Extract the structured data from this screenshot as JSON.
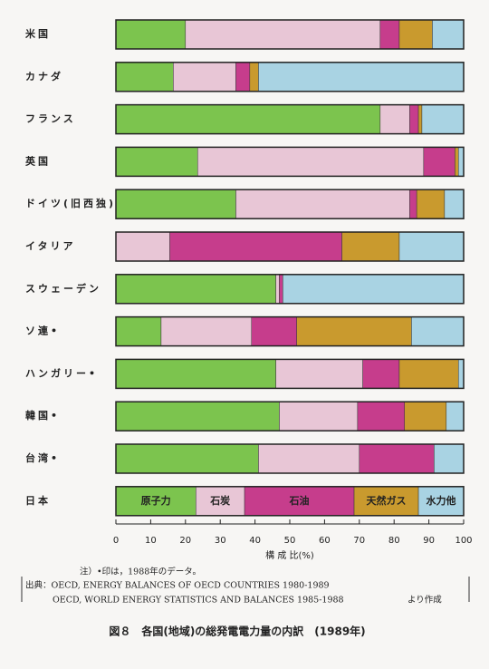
{
  "chart_data": {
    "type": "stacked-bar-horizontal",
    "title": "図８　各国(地域)の総発電電力量の内訳　(1989年)",
    "xlabel": "構 成 比(%)",
    "note": "注）•印は，1988年のデータ。",
    "source": [
      "出典：OECD, ENERGY BALANCES OF OECD COUNTRIES 1980-1989",
      "OECD, WORLD ENERGY STATISTICS AND BALANCES 1985-1988",
      "より作成"
    ],
    "categories": [
      "米国",
      "カナダ",
      "フランス",
      "英国",
      "ドイツ(旧西独)",
      "イタリア",
      "スウェーデン",
      "ソ連•",
      "ハンガリー•",
      "韓国•",
      "台湾•",
      "日本"
    ],
    "series": [
      {
        "name": "原子力",
        "color": "#7cc44e",
        "values": [
          20,
          16.5,
          76,
          23.5,
          34.5,
          0,
          46,
          13,
          46,
          47,
          41,
          23
        ]
      },
      {
        "name": "石炭",
        "color": "#e8c6d6",
        "values": [
          56,
          18,
          8.5,
          65,
          50,
          15.5,
          1,
          26,
          25,
          22.5,
          29,
          14
        ]
      },
      {
        "name": "石油",
        "color": "#c63d8c",
        "values": [
          5.5,
          4,
          2.5,
          9,
          2,
          49.5,
          1,
          13,
          10.5,
          13.5,
          21.5,
          31.5
        ]
      },
      {
        "name": "天然ガス",
        "color": "#c99a2e",
        "values": [
          9.5,
          2.5,
          1,
          1,
          8,
          16.5,
          0,
          33,
          17,
          12,
          0,
          18.5
        ]
      },
      {
        "name": "水力他",
        "color": "#a9d3e3",
        "values": [
          9,
          59,
          12,
          1.5,
          5.5,
          18.5,
          52,
          15,
          1.5,
          5,
          8.5,
          13
        ]
      }
    ],
    "xlim": [
      0,
      100
    ],
    "xticks": [
      0,
      10,
      20,
      30,
      40,
      50,
      60,
      70,
      80,
      90,
      100
    ]
  }
}
